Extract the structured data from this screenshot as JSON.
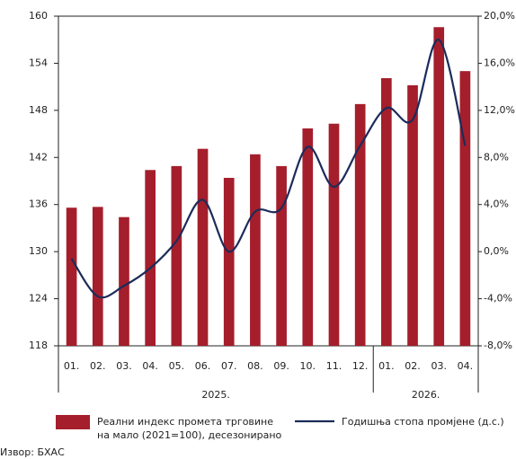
{
  "chart_data": {
    "type": "bar",
    "categories": [
      "01.",
      "02.",
      "03.",
      "04.",
      "05.",
      "06.",
      "07.",
      "08.",
      "09.",
      "10.",
      "11.",
      "12.",
      "01.",
      "02.",
      "03.",
      "04."
    ],
    "groups": [
      "2025.",
      "2026."
    ],
    "series": [
      {
        "name": "Реални индекс промета трговине на мало (2021=100), десезонирано",
        "color": "#a51e2b",
        "type": "bar",
        "values": [
          135.6,
          135.7,
          134.4,
          140.4,
          140.9,
          143.1,
          139.4,
          142.4,
          140.9,
          145.7,
          146.3,
          148.8,
          152.1,
          151.2,
          158.6,
          153.0
        ]
      },
      {
        "name": "Годишња стопа промјене (д.с.)",
        "color": "#1c2b5a",
        "type": "line",
        "axis": "y2",
        "values": [
          -0.6,
          -3.8,
          -2.9,
          -1.4,
          0.9,
          4.4,
          0.0,
          3.4,
          3.7,
          8.9,
          5.5,
          9.0,
          12.2,
          11.2,
          18.0,
          9.0
        ]
      }
    ],
    "ylim": [
      118,
      160
    ],
    "yticks": [
      118,
      124,
      130,
      136,
      142,
      148,
      154,
      160
    ],
    "y2lim": [
      -8,
      20
    ],
    "y2ticks": [
      {
        "value": -8,
        "label": "-8,0%"
      },
      {
        "value": -4,
        "label": "-4,0%"
      },
      {
        "value": 0,
        "label": "0,0%"
      },
      {
        "value": 4,
        "label": "4,0%"
      },
      {
        "value": 8,
        "label": "8,0%"
      },
      {
        "value": 12,
        "label": "12,0%"
      },
      {
        "value": 16,
        "label": "16,0%"
      },
      {
        "value": 20,
        "label": "20,0%"
      }
    ],
    "source": "Извор: БХАС"
  }
}
